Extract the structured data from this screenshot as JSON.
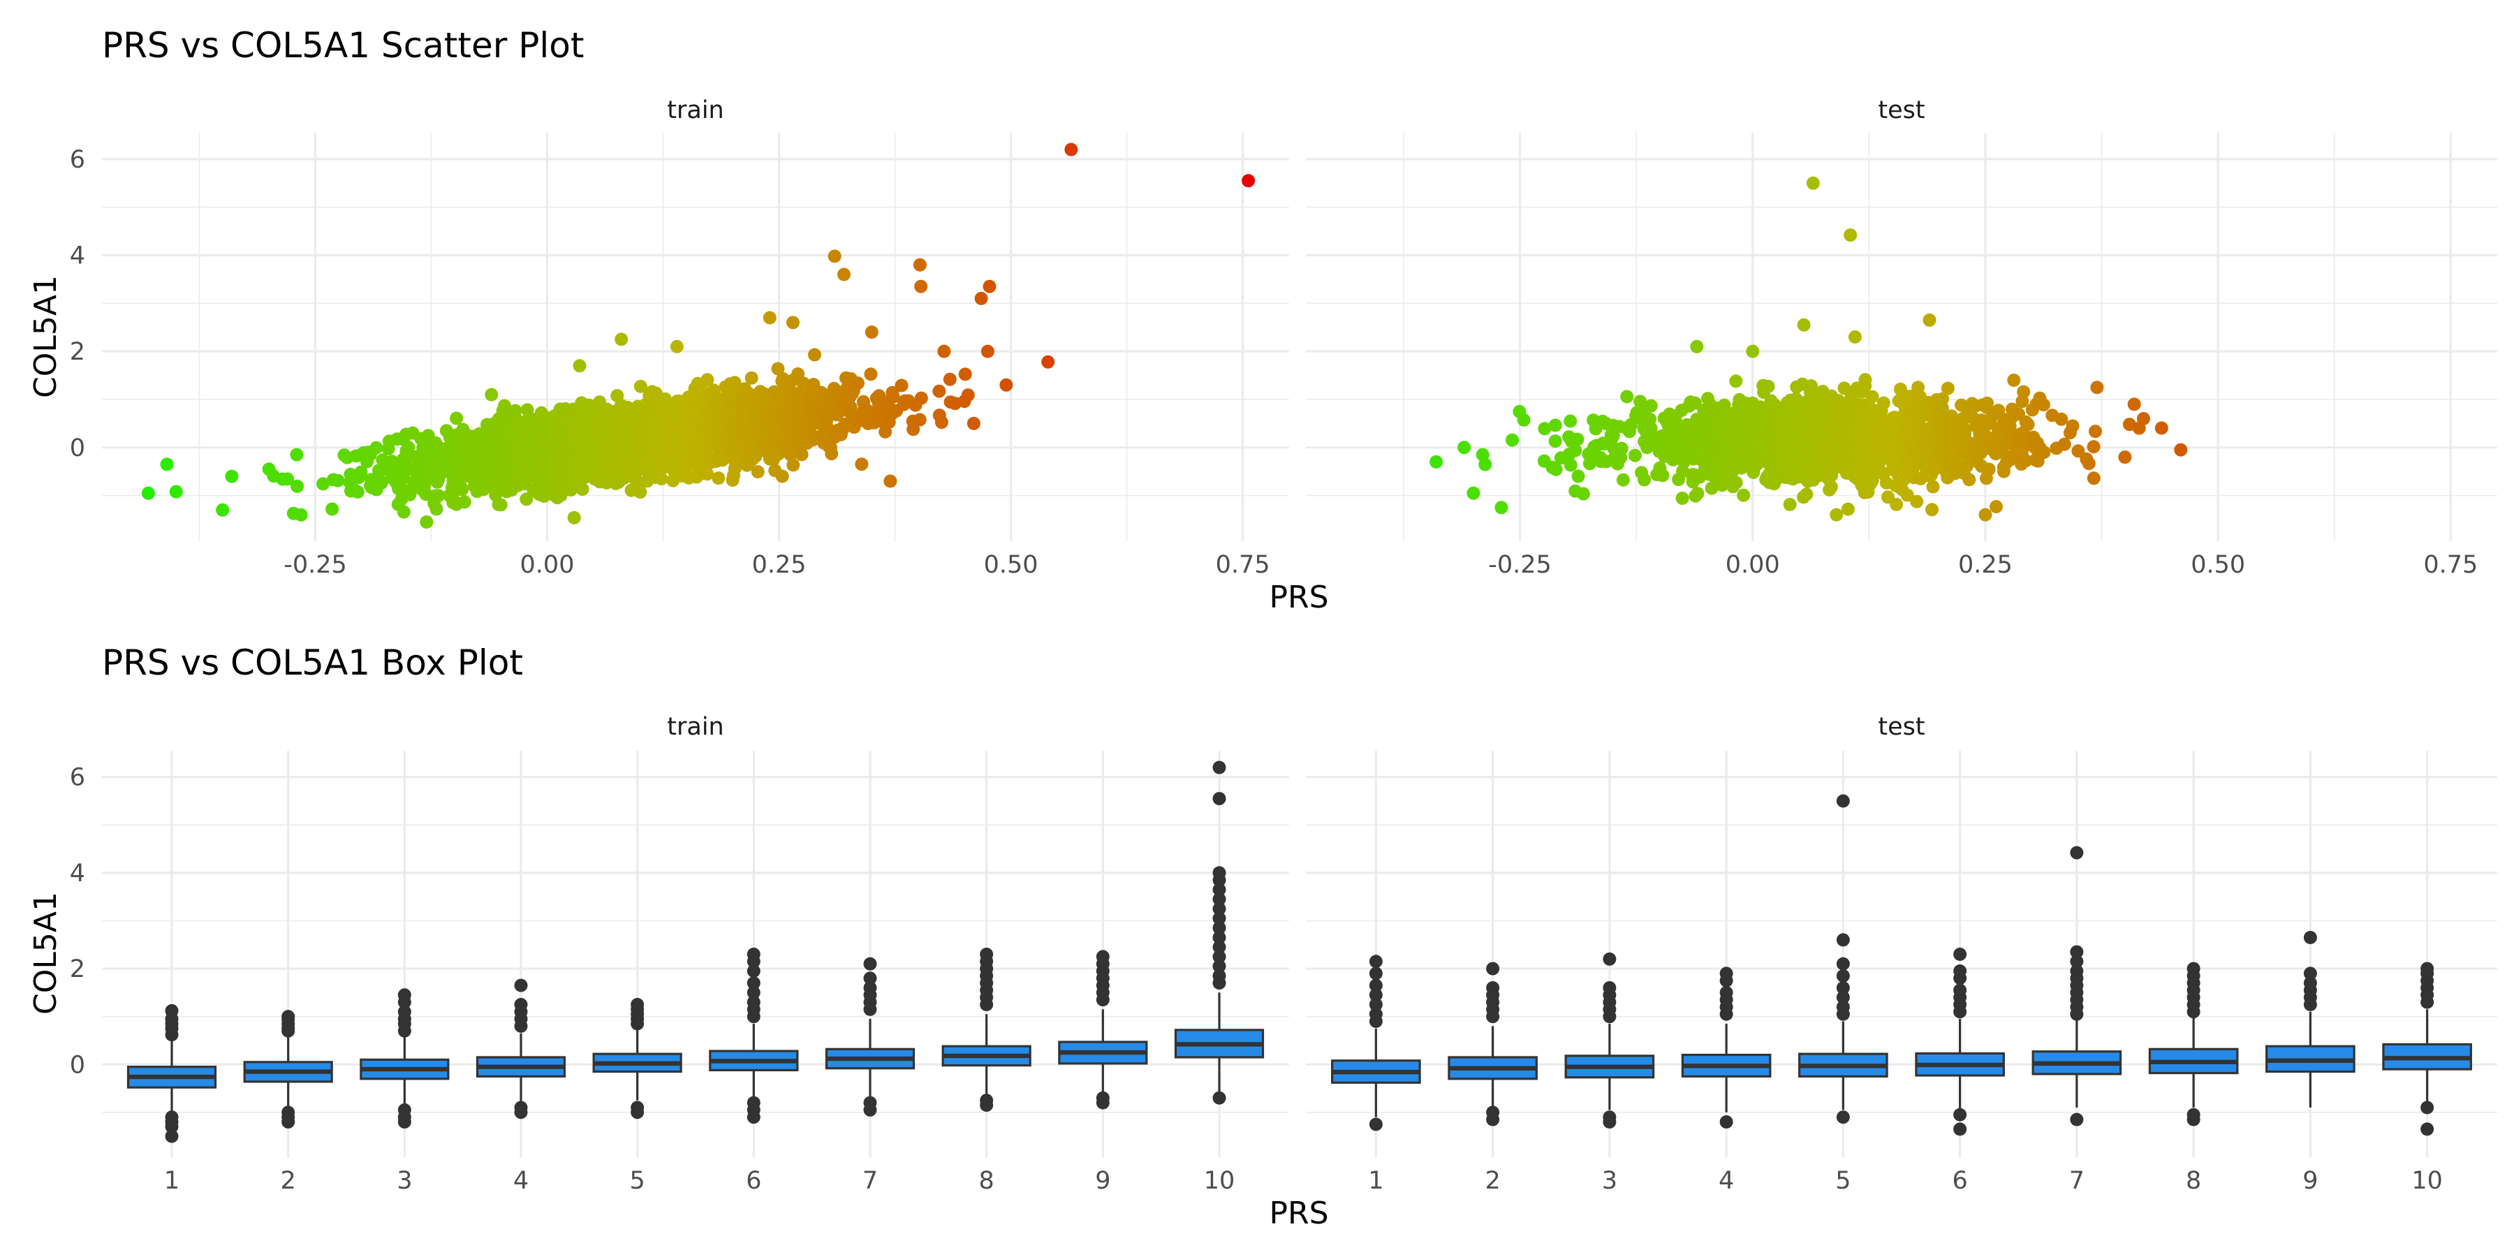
{
  "chart_data": [
    {
      "type": "scatter",
      "title": "PRS vs COL5A1 Scatter Plot",
      "xlabel": "PRS",
      "ylabel": "COL5A1",
      "xlim": [
        -0.48,
        0.8
      ],
      "ylim": [
        -1.95,
        6.55
      ],
      "xticks": [
        -0.25,
        0.0,
        0.25,
        0.5,
        0.75
      ],
      "xtick_labels": [
        "-0.25",
        "0.00",
        "0.25",
        "0.50",
        "0.75"
      ],
      "yticks": [
        0,
        2,
        4,
        6
      ],
      "ytick_labels": [
        "0",
        "2",
        "4",
        "6"
      ],
      "grid": true,
      "color_scale": {
        "low": "#22ee00",
        "mid": "#bdb400",
        "high": "#e80000",
        "range": [
          -0.45,
          0.76
        ]
      },
      "panels": [
        {
          "strip": "train",
          "cloud": {
            "n": 2600,
            "x_mean": 0.09,
            "x_sd": 0.12,
            "slope": 2.4,
            "noise_sd": 0.38
          },
          "points": [
            {
              "x": 0.565,
              "y": 6.2
            },
            {
              "x": 0.756,
              "y": 5.55
            },
            {
              "x": 0.31,
              "y": 3.98
            },
            {
              "x": 0.402,
              "y": 3.8
            },
            {
              "x": 0.32,
              "y": 3.6
            },
            {
              "x": 0.477,
              "y": 3.35
            },
            {
              "x": 0.468,
              "y": 3.1
            },
            {
              "x": 0.403,
              "y": 3.35
            },
            {
              "x": 0.265,
              "y": 2.6
            },
            {
              "x": 0.24,
              "y": 2.7
            },
            {
              "x": 0.35,
              "y": 2.4
            },
            {
              "x": 0.428,
              "y": 2.0
            },
            {
              "x": 0.475,
              "y": 2.0
            },
            {
              "x": 0.54,
              "y": 1.78
            },
            {
              "x": 0.495,
              "y": 1.3
            },
            {
              "x": 0.46,
              "y": 0.5
            },
            {
              "x": 0.37,
              "y": -0.7
            },
            {
              "x": 0.08,
              "y": 2.25
            },
            {
              "x": 0.14,
              "y": 2.1
            },
            {
              "x": 0.035,
              "y": 1.7
            },
            {
              "x": -0.34,
              "y": -0.6
            },
            {
              "x": -0.3,
              "y": -0.45
            },
            {
              "x": -0.27,
              "y": -0.15
            },
            {
              "x": -0.41,
              "y": -0.35
            },
            {
              "x": -0.43,
              "y": -0.95
            },
            {
              "x": -0.4,
              "y": -0.92
            },
            {
              "x": -0.35,
              "y": -1.3
            },
            {
              "x": -0.13,
              "y": -1.55
            },
            {
              "x": -0.145,
              "y": 0.3
            },
            {
              "x": -0.06,
              "y": 1.1
            }
          ]
        },
        {
          "strip": "test",
          "cloud": {
            "n": 1500,
            "x_mean": 0.08,
            "x_sd": 0.11,
            "slope": 0.3,
            "noise_sd": 0.42
          },
          "points": [
            {
              "x": 0.065,
              "y": 5.5
            },
            {
              "x": 0.105,
              "y": 4.42
            },
            {
              "x": 0.19,
              "y": 2.65
            },
            {
              "x": 0.055,
              "y": 2.55
            },
            {
              "x": 0.11,
              "y": 2.3
            },
            {
              "x": 0.0,
              "y": 2.0
            },
            {
              "x": 0.46,
              "y": -0.05
            },
            {
              "x": 0.41,
              "y": 0.9
            },
            {
              "x": 0.42,
              "y": 0.6
            },
            {
              "x": 0.37,
              "y": 1.25
            },
            {
              "x": 0.4,
              "y": -0.2
            },
            {
              "x": -0.34,
              "y": -0.3
            },
            {
              "x": -0.3,
              "y": -0.95
            },
            {
              "x": -0.29,
              "y": -0.15
            },
            {
              "x": -0.27,
              "y": -1.25
            },
            {
              "x": -0.31,
              "y": 0.0
            },
            {
              "x": 0.25,
              "y": -1.4
            },
            {
              "x": 0.09,
              "y": -1.4
            },
            {
              "x": -0.06,
              "y": 2.1
            }
          ]
        }
      ]
    },
    {
      "type": "box",
      "title": "PRS vs COL5A1 Box Plot",
      "xlabel": "PRS",
      "ylabel": "COL5A1",
      "categories": [
        "1",
        "2",
        "3",
        "4",
        "5",
        "6",
        "7",
        "8",
        "9",
        "10"
      ],
      "ylim": [
        -1.95,
        6.55
      ],
      "yticks": [
        0,
        2,
        4,
        6
      ],
      "ytick_labels": [
        "0",
        "2",
        "4",
        "6"
      ],
      "grid": true,
      "fill_color": "#268be8",
      "panels": [
        {
          "strip": "train",
          "boxes": [
            {
              "q1": -0.48,
              "med": -0.26,
              "q3": -0.05,
              "lo": -1.0,
              "hi": 0.5,
              "out": [
                1.12,
                0.95,
                0.85,
                0.75,
                0.62,
                -1.1,
                -1.2,
                -1.3,
                -1.5
              ]
            },
            {
              "q1": -0.36,
              "med": -0.15,
              "q3": 0.05,
              "lo": -0.95,
              "hi": 0.6,
              "out": [
                1.0,
                0.95,
                0.85,
                0.75,
                0.7,
                -1.0,
                -1.1,
                -1.2
              ]
            },
            {
              "q1": -0.3,
              "med": -0.1,
              "q3": 0.1,
              "lo": -0.85,
              "hi": 0.6,
              "out": [
                1.45,
                1.3,
                1.1,
                0.95,
                0.85,
                0.7,
                -0.95,
                -1.1,
                -1.2
              ]
            },
            {
              "q1": -0.25,
              "med": -0.05,
              "q3": 0.15,
              "lo": -0.8,
              "hi": 0.65,
              "out": [
                1.65,
                1.25,
                1.1,
                0.95,
                0.8,
                -0.9,
                -1.0
              ]
            },
            {
              "q1": -0.15,
              "med": 0.02,
              "q3": 0.22,
              "lo": -0.75,
              "hi": 0.75,
              "out": [
                1.25,
                1.15,
                1.05,
                0.95,
                0.85,
                -0.9,
                -1.0
              ]
            },
            {
              "q1": -0.12,
              "med": 0.07,
              "q3": 0.28,
              "lo": -0.7,
              "hi": 0.85,
              "out": [
                2.3,
                2.15,
                1.95,
                1.7,
                1.5,
                1.3,
                1.15,
                1.0,
                -0.8,
                -0.95,
                -1.1
              ]
            },
            {
              "q1": -0.08,
              "med": 0.12,
              "q3": 0.32,
              "lo": -0.7,
              "hi": 0.95,
              "out": [
                2.1,
                1.8,
                1.6,
                1.45,
                1.3,
                1.15,
                -0.8,
                -0.95
              ]
            },
            {
              "q1": -0.02,
              "med": 0.18,
              "q3": 0.38,
              "lo": -0.65,
              "hi": 1.05,
              "out": [
                2.3,
                2.15,
                2.0,
                1.85,
                1.7,
                1.55,
                1.4,
                1.25,
                -0.75,
                -0.85
              ]
            },
            {
              "q1": 0.02,
              "med": 0.25,
              "q3": 0.47,
              "lo": -0.6,
              "hi": 1.15,
              "out": [
                2.25,
                2.1,
                1.95,
                1.8,
                1.65,
                1.5,
                1.35,
                -0.7,
                -0.8
              ]
            },
            {
              "q1": 0.15,
              "med": 0.42,
              "q3": 0.72,
              "lo": -0.6,
              "hi": 1.5,
              "out": [
                6.2,
                5.55,
                4.0,
                3.85,
                3.65,
                3.45,
                3.25,
                3.05,
                2.85,
                2.65,
                2.45,
                2.25,
                2.05,
                1.85,
                1.7,
                -0.7
              ]
            }
          ]
        },
        {
          "strip": "test",
          "boxes": [
            {
              "q1": -0.38,
              "med": -0.16,
              "q3": 0.08,
              "lo": -1.1,
              "hi": 0.75,
              "out": [
                2.15,
                1.9,
                1.65,
                1.45,
                1.25,
                1.05,
                0.9,
                -1.25
              ]
            },
            {
              "q1": -0.3,
              "med": -0.08,
              "q3": 0.15,
              "lo": -0.95,
              "hi": 0.8,
              "out": [
                2.0,
                1.6,
                1.45,
                1.3,
                1.15,
                1.0,
                -1.0,
                -1.15
              ]
            },
            {
              "q1": -0.27,
              "med": -0.05,
              "q3": 0.18,
              "lo": -0.95,
              "hi": 0.85,
              "out": [
                2.2,
                1.6,
                1.45,
                1.3,
                1.15,
                1.0,
                -1.1,
                -1.2
              ]
            },
            {
              "q1": -0.25,
              "med": -0.03,
              "q3": 0.2,
              "lo": -1.0,
              "hi": 0.85,
              "out": [
                1.9,
                1.75,
                1.5,
                1.35,
                1.2,
                1.05,
                -1.2
              ]
            },
            {
              "q1": -0.25,
              "med": -0.03,
              "q3": 0.22,
              "lo": -0.95,
              "hi": 0.9,
              "out": [
                5.5,
                2.6,
                2.1,
                1.85,
                1.6,
                1.4,
                1.2,
                1.05,
                -1.1
              ]
            },
            {
              "q1": -0.23,
              "med": -0.01,
              "q3": 0.23,
              "lo": -0.95,
              "hi": 0.95,
              "out": [
                2.3,
                1.95,
                1.8,
                1.55,
                1.4,
                1.25,
                1.1,
                -1.05,
                -1.35
              ]
            },
            {
              "q1": -0.2,
              "med": 0.02,
              "q3": 0.27,
              "lo": -0.9,
              "hi": 0.95,
              "out": [
                4.42,
                2.35,
                2.15,
                1.95,
                1.8,
                1.65,
                1.5,
                1.35,
                1.2,
                1.05,
                -1.15
              ]
            },
            {
              "q1": -0.18,
              "med": 0.05,
              "q3": 0.32,
              "lo": -0.9,
              "hi": 1.0,
              "out": [
                2.0,
                1.85,
                1.7,
                1.55,
                1.4,
                1.25,
                1.1,
                -1.05,
                -1.15
              ]
            },
            {
              "q1": -0.15,
              "med": 0.08,
              "q3": 0.38,
              "lo": -0.9,
              "hi": 1.1,
              "out": [
                2.65,
                1.9,
                1.7,
                1.55,
                1.4,
                1.25
              ]
            },
            {
              "q1": -0.1,
              "med": 0.13,
              "q3": 0.42,
              "lo": -0.8,
              "hi": 1.15,
              "out": [
                2.0,
                1.9,
                1.75,
                1.6,
                1.45,
                1.3,
                -0.9,
                -1.35
              ]
            }
          ]
        }
      ]
    }
  ]
}
